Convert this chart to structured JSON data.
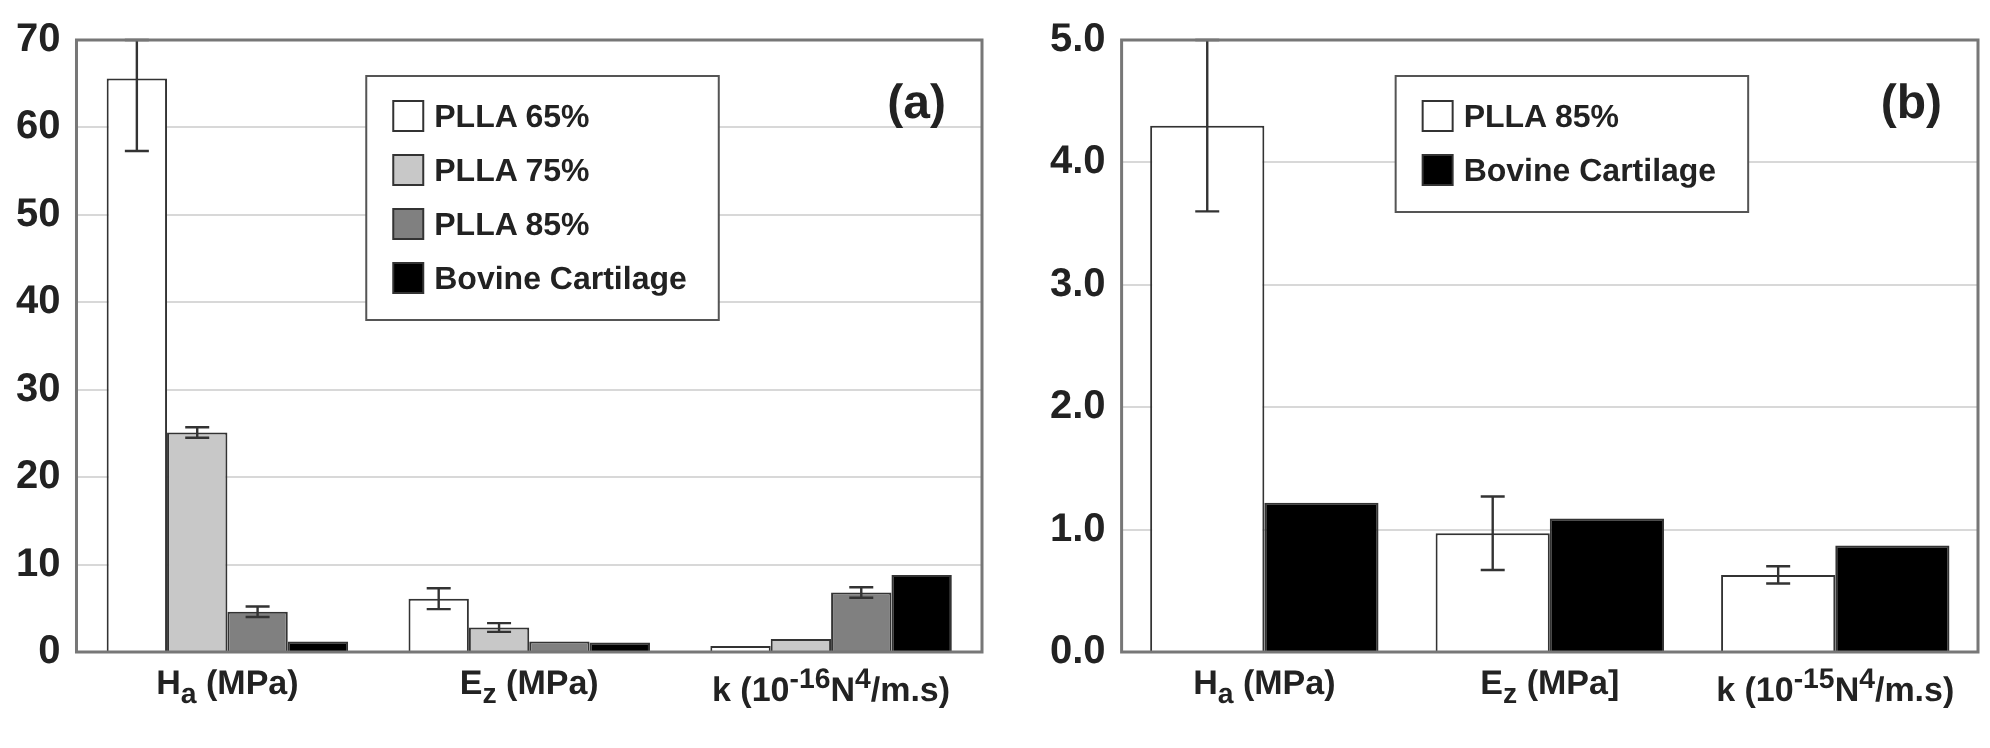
{
  "chart_data": [
    {
      "type": "bar",
      "categories": [
        "H$_{a}$ (MPa)",
        "E$_{z}$ (MPa)",
        "k (10$^{-16}$N$^{4}$/m.s)"
      ],
      "series": [
        {
          "name": "PLLA 65%",
          "color": "#ffffff",
          "values": [
            65.6,
            6.1,
            0.7
          ],
          "errors": [
            [
              57.3,
              70
            ],
            1.2,
            null
          ]
        },
        {
          "name": "PLLA 75%",
          "color": "#c8c8c8",
          "values": [
            25.1,
            2.8,
            1.5
          ],
          "errors": [
            0.6,
            0.5,
            null
          ]
        },
        {
          "name": "PLLA 85%",
          "color": "#808080",
          "values": [
            4.6,
            1.2,
            6.8
          ],
          "errors": [
            0.6,
            null,
            0.6
          ]
        },
        {
          "name": "Bovine Cartilage",
          "color": "#000000",
          "values": [
            1.2,
            1.1,
            8.8
          ]
        }
      ],
      "ylim": [
        0,
        70
      ],
      "yticks": [
        0,
        10,
        20,
        30,
        40,
        50,
        60,
        70
      ],
      "grid": "y",
      "legend": "top",
      "annotations": [
        "(a)"
      ]
    },
    {
      "type": "bar",
      "categories": [
        "H$_{a}$ (MPa)",
        "E$_{z}$ (MPa]",
        "k (10$^{-15}$N$^{4}$/m.s)"
      ],
      "series": [
        {
          "name": "PLLA 85%",
          "color": "#ffffff",
          "values": [
            4.3,
            0.97,
            0.63
          ],
          "errors": [
            0.7,
            0.3,
            0.07
          ]
        },
        {
          "name": "Bovine Cartilage",
          "color": "#000000",
          "values": [
            1.22,
            1.09,
            0.87
          ]
        }
      ],
      "ylim": [
        0,
        5
      ],
      "yticks": [
        {
          "value": 0,
          "label": "0.0"
        },
        {
          "value": 1,
          "label": "1.0"
        },
        {
          "value": 2,
          "label": "2.0"
        },
        {
          "value": 3,
          "label": "3.0"
        },
        {
          "value": 4,
          "label": "4.0"
        },
        {
          "value": 5,
          "label": "5.0"
        }
      ],
      "grid": "y",
      "legend": "top",
      "annotations": [
        "(b)"
      ]
    }
  ]
}
